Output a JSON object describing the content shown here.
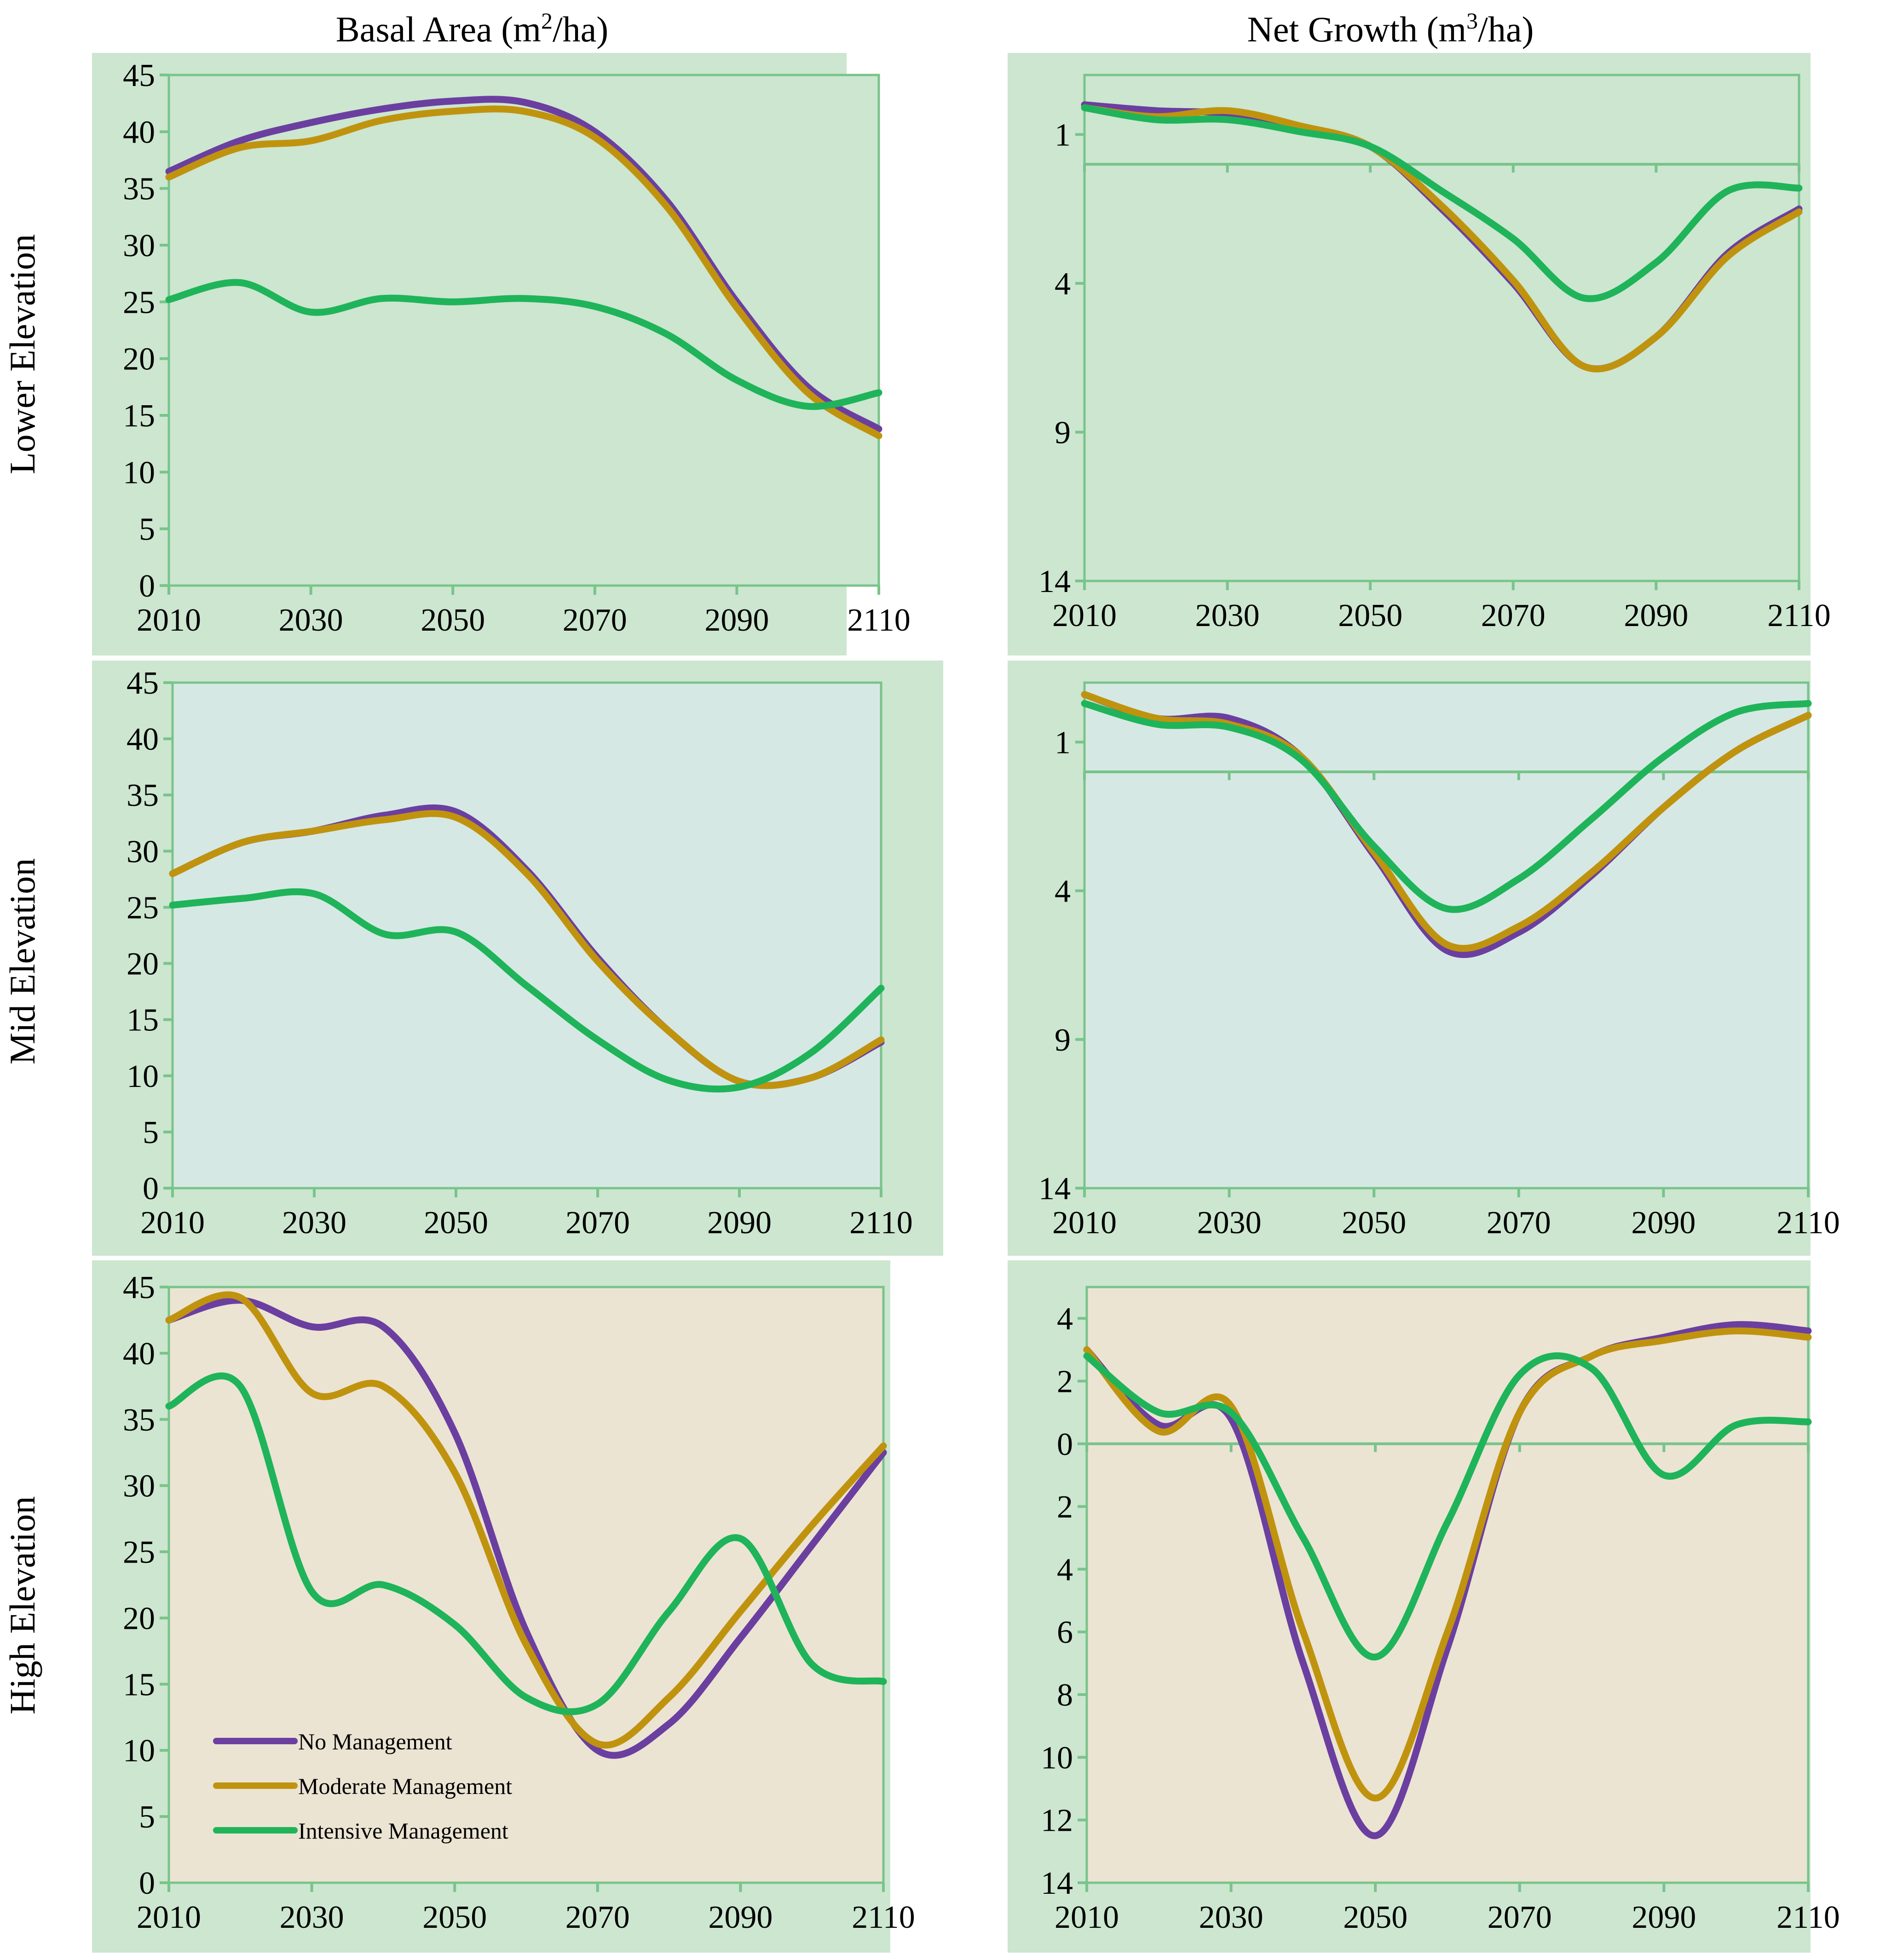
{
  "colors": {
    "no_management": "#6b3fa0",
    "moderate_management": "#c0930f",
    "intensive_management": "#1fb45a",
    "outer_panel": "#cce6d0",
    "axis_line": "#78c48a",
    "negative_tick": "#ff0000",
    "lower_plot_bg": "#cce6d0",
    "mid_plot_bg": "#d6e8e4",
    "high_plot_bg": "#ebe4d3"
  },
  "figure": {
    "col_titles": {
      "basal": {
        "pre": "Basal Area (m",
        "sup": "2",
        "post": "/ha)"
      },
      "growth": {
        "pre": "Net Growth (m",
        "sup": "3",
        "post": "/ha)"
      }
    },
    "row_titles": [
      "Lower Elevation",
      "Mid Elevation",
      "High Elevation"
    ]
  },
  "legend": [
    {
      "label": "No Management",
      "color": "#6b3fa0"
    },
    {
      "label": "Moderate Management",
      "color": "#c0930f"
    },
    {
      "label": "Intensive Management",
      "color": "#1fb45a"
    }
  ],
  "chart_data": [
    {
      "id": "lower-basal",
      "type": "line",
      "title": "Basal Area (m2/ha)",
      "row": "Lower Elevation",
      "xlim": [
        2010,
        2110
      ],
      "ylim": [
        0,
        45
      ],
      "xticks": [
        "2010",
        "2030",
        "2050",
        "2070",
        "2090",
        "2110"
      ],
      "yticks": [
        {
          "v": 0,
          "label": "0"
        },
        {
          "v": 5,
          "label": "5"
        },
        {
          "v": 10,
          "label": "10"
        },
        {
          "v": 15,
          "label": "15"
        },
        {
          "v": 20,
          "label": "20"
        },
        {
          "v": 25,
          "label": "25"
        },
        {
          "v": 30,
          "label": "30"
        },
        {
          "v": 35,
          "label": "35"
        },
        {
          "v": 40,
          "label": "40"
        },
        {
          "v": 45,
          "label": "45"
        }
      ],
      "x": [
        2010,
        2020,
        2030,
        2040,
        2050,
        2060,
        2070,
        2080,
        2090,
        2100,
        2110
      ],
      "series": [
        {
          "name": "No Management",
          "values": [
            36.5,
            39.2,
            40.8,
            42.0,
            42.7,
            42.6,
            40.0,
            34.0,
            25.0,
            17.5,
            13.8
          ]
        },
        {
          "name": "Moderate Management",
          "values": [
            36.0,
            38.6,
            39.2,
            41.0,
            41.8,
            41.8,
            39.5,
            33.5,
            24.5,
            17.0,
            13.2
          ]
        },
        {
          "name": "Intensive Management",
          "values": [
            25.2,
            26.7,
            24.1,
            25.3,
            25.0,
            25.3,
            24.6,
            22.2,
            18.1,
            15.8,
            17.0
          ]
        }
      ]
    },
    {
      "id": "lower-growth",
      "type": "line",
      "title": "Net Growth (m3/ha)",
      "row": "Lower Elevation",
      "xlim": [
        2010,
        2110
      ],
      "ylim": [
        -14,
        3
      ],
      "zero_line": true,
      "xticks": [
        "2010",
        "2030",
        "2050",
        "2070",
        "2090",
        "2110"
      ],
      "yticks": [
        {
          "v": 1,
          "label": "1",
          "negative": false
        },
        {
          "v": -4,
          "label": "4",
          "negative": true
        },
        {
          "v": -9,
          "label": "9",
          "negative": true
        },
        {
          "v": -14,
          "label": "14",
          "negative": true
        }
      ],
      "x": [
        2010,
        2020,
        2030,
        2040,
        2050,
        2060,
        2070,
        2080,
        2090,
        2100,
        2110
      ],
      "series": [
        {
          "name": "No Management",
          "values": [
            2.0,
            1.8,
            1.7,
            1.2,
            0.6,
            -1.5,
            -4.0,
            -6.8,
            -5.8,
            -3.0,
            -1.5
          ]
        },
        {
          "name": "Moderate Management",
          "values": [
            1.9,
            1.6,
            1.8,
            1.3,
            0.6,
            -1.4,
            -3.9,
            -6.8,
            -5.8,
            -3.1,
            -1.6
          ]
        },
        {
          "name": "Intensive Management",
          "values": [
            1.9,
            1.5,
            1.5,
            1.1,
            0.6,
            -0.9,
            -2.5,
            -4.5,
            -3.3,
            -0.9,
            -0.8
          ]
        }
      ]
    },
    {
      "id": "mid-basal",
      "type": "line",
      "title": "Basal Area (m2/ha)",
      "row": "Mid Elevation",
      "xlim": [
        2010,
        2110
      ],
      "ylim": [
        0,
        45
      ],
      "xticks": [
        "2010",
        "2030",
        "2050",
        "2070",
        "2090",
        "2110"
      ],
      "yticks": [
        {
          "v": 0,
          "label": "0"
        },
        {
          "v": 5,
          "label": "5"
        },
        {
          "v": 10,
          "label": "10"
        },
        {
          "v": 15,
          "label": "15"
        },
        {
          "v": 20,
          "label": "20"
        },
        {
          "v": 25,
          "label": "25"
        },
        {
          "v": 30,
          "label": "30"
        },
        {
          "v": 35,
          "label": "35"
        },
        {
          "v": 40,
          "label": "40"
        },
        {
          "v": 45,
          "label": "45"
        }
      ],
      "x": [
        2010,
        2020,
        2030,
        2040,
        2050,
        2060,
        2070,
        2080,
        2090,
        2100,
        2110
      ],
      "series": [
        {
          "name": "No Management",
          "values": [
            28.0,
            30.8,
            31.8,
            33.2,
            33.5,
            28.3,
            20.5,
            14.0,
            9.5,
            9.8,
            13.0
          ]
        },
        {
          "name": "Moderate Management",
          "values": [
            28.0,
            30.8,
            31.8,
            32.8,
            33.0,
            28.0,
            20.2,
            14.0,
            9.5,
            9.8,
            13.2
          ]
        },
        {
          "name": "Intensive Management",
          "values": [
            25.2,
            25.8,
            26.2,
            22.6,
            22.8,
            18.0,
            13.2,
            9.6,
            9.0,
            12.0,
            17.8
          ]
        }
      ]
    },
    {
      "id": "mid-growth",
      "type": "line",
      "title": "Net Growth (m3/ha)",
      "row": "Mid Elevation",
      "xlim": [
        2010,
        2110
      ],
      "ylim": [
        -14,
        3
      ],
      "zero_line": true,
      "xticks": [
        "2010",
        "2030",
        "2050",
        "2070",
        "2090",
        "2110"
      ],
      "yticks": [
        {
          "v": 1,
          "label": "1",
          "negative": false
        },
        {
          "v": -4,
          "label": "4",
          "negative": true
        },
        {
          "v": -9,
          "label": "9",
          "negative": true
        },
        {
          "v": -14,
          "label": "14",
          "negative": true
        }
      ],
      "x": [
        2010,
        2020,
        2030,
        2040,
        2050,
        2060,
        2070,
        2080,
        2090,
        2100,
        2110
      ],
      "series": [
        {
          "name": "No Management",
          "values": [
            2.6,
            1.8,
            1.8,
            0.5,
            -2.8,
            -6.0,
            -5.4,
            -3.5,
            -1.2,
            0.7,
            1.9
          ]
        },
        {
          "name": "Moderate Management",
          "values": [
            2.6,
            1.8,
            1.6,
            0.5,
            -2.7,
            -5.8,
            -5.2,
            -3.4,
            -1.2,
            0.7,
            1.9
          ]
        },
        {
          "name": "Intensive Management",
          "values": [
            2.3,
            1.6,
            1.5,
            0.4,
            -2.5,
            -4.6,
            -3.6,
            -1.6,
            0.5,
            2.0,
            2.3
          ]
        }
      ]
    },
    {
      "id": "high-basal",
      "type": "line",
      "title": "Basal Area (m2/ha)",
      "row": "High Elevation",
      "xlim": [
        2010,
        2110
      ],
      "ylim": [
        0,
        45
      ],
      "xticks": [
        "2010",
        "2030",
        "2050",
        "2070",
        "2090",
        "2110"
      ],
      "yticks": [
        {
          "v": 0,
          "label": "0"
        },
        {
          "v": 5,
          "label": "5"
        },
        {
          "v": 10,
          "label": "10"
        },
        {
          "v": 15,
          "label": "15"
        },
        {
          "v": 20,
          "label": "20"
        },
        {
          "v": 25,
          "label": "25"
        },
        {
          "v": 30,
          "label": "30"
        },
        {
          "v": 35,
          "label": "35"
        },
        {
          "v": 40,
          "label": "40"
        },
        {
          "v": 45,
          "label": "45"
        }
      ],
      "x": [
        2010,
        2020,
        2030,
        2040,
        2050,
        2060,
        2070,
        2080,
        2090,
        2100,
        2110
      ],
      "series": [
        {
          "name": "No Management",
          "values": [
            42.5,
            44.0,
            42.0,
            42.0,
            34.0,
            19.0,
            10.0,
            12.0,
            18.5,
            25.5,
            32.5
          ]
        },
        {
          "name": "Moderate Management",
          "values": [
            42.5,
            44.2,
            37.0,
            37.5,
            31.0,
            18.0,
            10.5,
            14.0,
            20.5,
            27.0,
            33.0
          ]
        },
        {
          "name": "Intensive Management",
          "values": [
            36.0,
            37.5,
            22.0,
            22.5,
            19.5,
            14.0,
            13.5,
            20.5,
            26.0,
            16.5,
            15.2
          ]
        }
      ]
    },
    {
      "id": "high-growth",
      "type": "line",
      "title": "Net Growth (m3/ha)",
      "row": "High Elevation",
      "xlim": [
        2010,
        2110
      ],
      "ylim": [
        -14,
        5
      ],
      "zero_line": true,
      "xticks": [
        "2010",
        "2030",
        "2050",
        "2070",
        "2090",
        "2110"
      ],
      "yticks": [
        {
          "v": 4,
          "label": "4",
          "negative": false
        },
        {
          "v": 2,
          "label": "2",
          "negative": false
        },
        {
          "v": 0,
          "label": "0",
          "negative": false
        },
        {
          "v": -2,
          "label": "2",
          "negative": true
        },
        {
          "v": -4,
          "label": "4",
          "negative": true
        },
        {
          "v": -6,
          "label": "6",
          "negative": true
        },
        {
          "v": -8,
          "label": "8",
          "negative": true
        },
        {
          "v": -10,
          "label": "10",
          "negative": true
        },
        {
          "v": -12,
          "label": "12",
          "negative": true
        },
        {
          "v": -14,
          "label": "14",
          "negative": true
        }
      ],
      "x": [
        2010,
        2020,
        2030,
        2040,
        2050,
        2060,
        2070,
        2080,
        2090,
        2100,
        2110
      ],
      "series": [
        {
          "name": "No Management",
          "values": [
            3.0,
            0.6,
            0.8,
            -7.0,
            -12.5,
            -6.5,
            1.0,
            2.8,
            3.4,
            3.8,
            3.6
          ]
        },
        {
          "name": "Moderate Management",
          "values": [
            3.0,
            0.4,
            1.2,
            -6.0,
            -11.3,
            -6.0,
            1.0,
            2.8,
            3.3,
            3.6,
            3.4
          ]
        },
        {
          "name": "Intensive Management",
          "values": [
            2.8,
            1.0,
            1.0,
            -3.0,
            -6.8,
            -2.5,
            2.2,
            2.4,
            -1.0,
            0.6,
            0.7
          ]
        }
      ]
    }
  ]
}
